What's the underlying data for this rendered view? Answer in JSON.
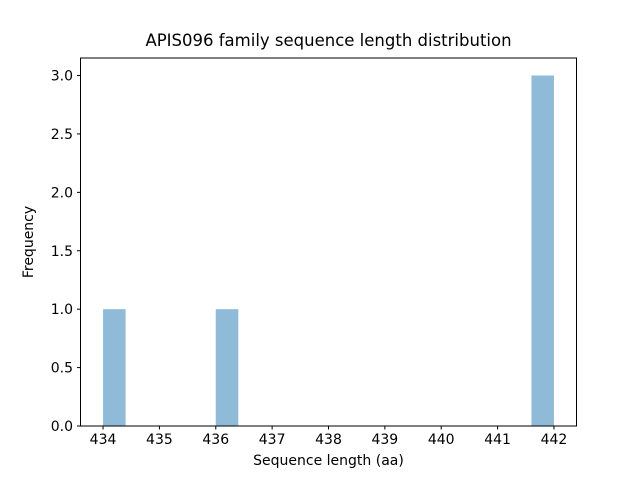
{
  "chart_data": {
    "type": "bar",
    "subtype": "histogram",
    "title": "APIS096 family sequence length distribution",
    "xlabel": "Sequence length (aa)",
    "ylabel": "Frequency",
    "xlim": [
      433.6,
      442.4
    ],
    "ylim": [
      0,
      3.15
    ],
    "x_ticks": [
      434,
      435,
      436,
      437,
      438,
      439,
      440,
      441,
      442
    ],
    "x_tick_labels": [
      "434",
      "435",
      "436",
      "437",
      "438",
      "439",
      "440",
      "441",
      "442"
    ],
    "y_ticks": [
      0.0,
      0.5,
      1.0,
      1.5,
      2.0,
      2.5,
      3.0
    ],
    "y_tick_labels": [
      "0.0",
      "0.5",
      "1.0",
      "1.5",
      "2.0",
      "2.5",
      "3.0"
    ],
    "bin_width": 0.4,
    "bars": [
      {
        "x_start": 434.0,
        "x_end": 434.4,
        "frequency": 1
      },
      {
        "x_start": 436.0,
        "x_end": 436.4,
        "frequency": 1
      },
      {
        "x_start": 441.6,
        "x_end": 442.0,
        "frequency": 3
      }
    ],
    "bar_color": "#8fbbd9",
    "axis_color": "#000000",
    "background_color": "#ffffff",
    "grid": false,
    "legend": null
  }
}
